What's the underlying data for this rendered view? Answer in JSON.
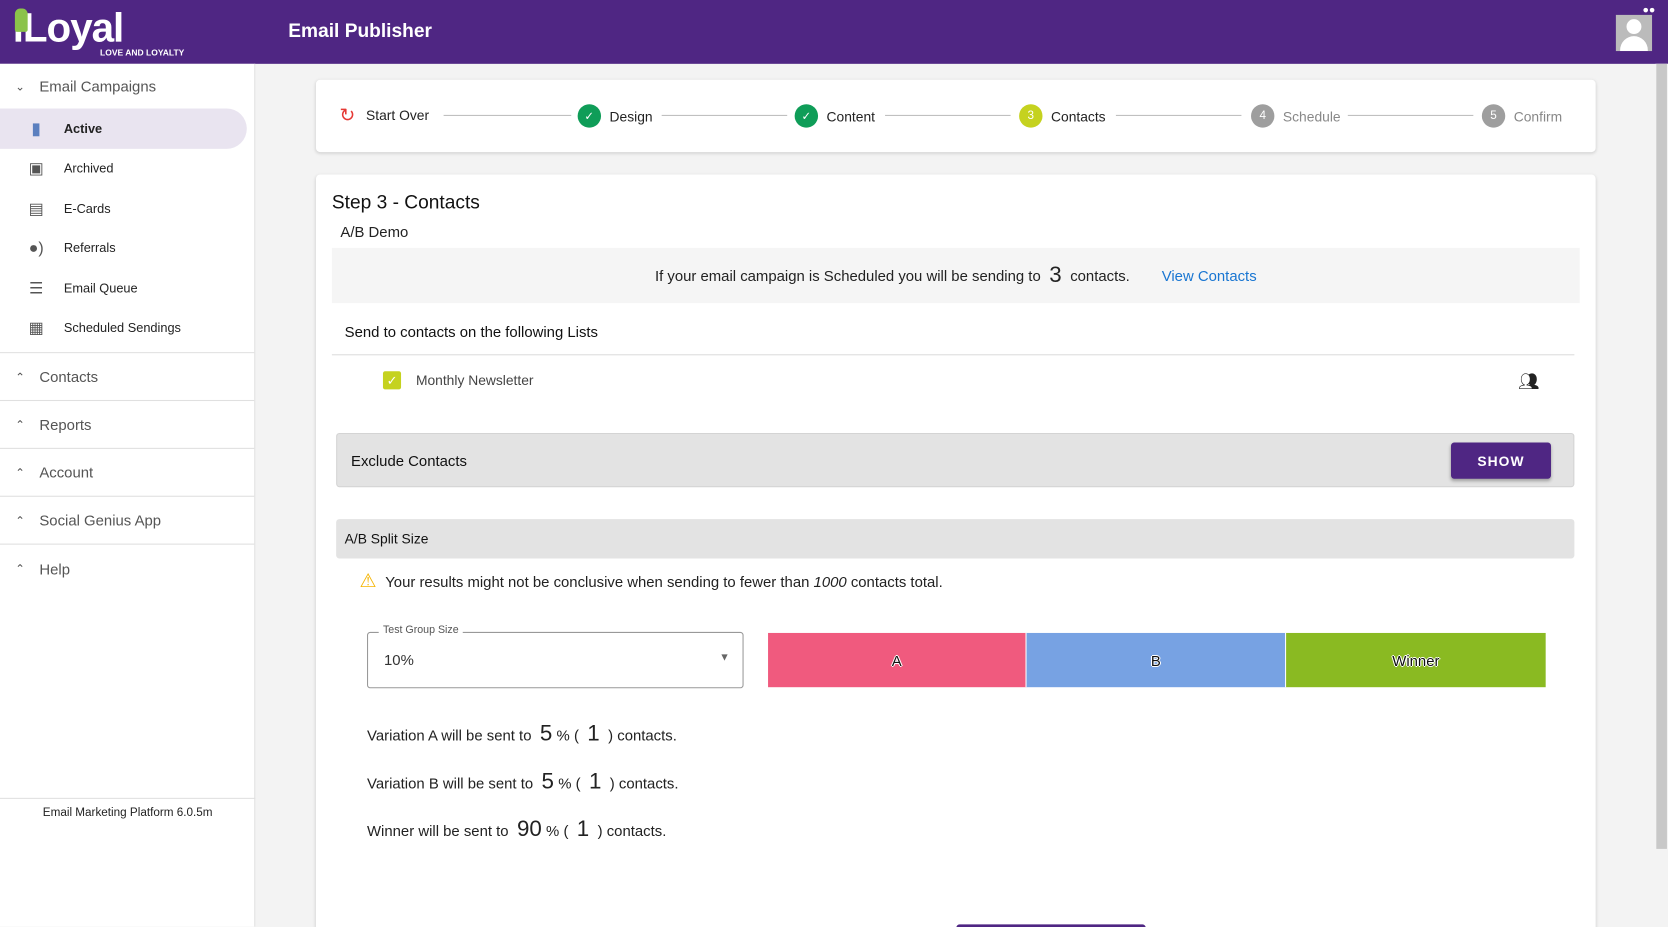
{
  "header": {
    "logo": "iLoyal",
    "logo_tagline": "LOVE AND LOYALTY",
    "title": "Email Publisher"
  },
  "sidebar": {
    "email_campaigns": "Email Campaigns",
    "items": [
      {
        "label": "Active",
        "icon": "document-icon"
      },
      {
        "label": "Archived",
        "icon": "archive-icon"
      },
      {
        "label": "E-Cards",
        "icon": "gift-card-icon"
      },
      {
        "label": "Referrals",
        "icon": "referral-icon"
      },
      {
        "label": "Email Queue",
        "icon": "queue-icon"
      },
      {
        "label": "Scheduled Sendings",
        "icon": "calendar-icon"
      }
    ],
    "sections": [
      "Contacts",
      "Reports",
      "Account",
      "Social Genius App",
      "Help"
    ],
    "version": "Email Marketing Platform 6.0.5m"
  },
  "stepper": {
    "start_over": "Start Over",
    "steps": [
      {
        "label": "Design",
        "state": "done"
      },
      {
        "label": "Content",
        "state": "done"
      },
      {
        "num": "3",
        "label": "Contacts",
        "state": "current"
      },
      {
        "num": "4",
        "label": "Schedule",
        "state": "todo"
      },
      {
        "num": "5",
        "label": "Confirm",
        "state": "todo"
      }
    ]
  },
  "main": {
    "title": "Step 3 - Contacts",
    "campaign": "A/B Demo",
    "info_pre": "If your email campaign is Scheduled you will be sending to",
    "info_count": "3",
    "info_post": "contacts.",
    "view_contacts": "View Contacts",
    "lists_heading": "Send to contacts on the following Lists",
    "lists": [
      {
        "name": "Monthly Newsletter",
        "checked": true
      }
    ],
    "exclude_label": "Exclude Contacts",
    "show_button": "SHOW",
    "split_heading": "A/B Split Size",
    "warning_pre": "Your results might not be conclusive when sending to fewer than",
    "warning_num": "1000",
    "warning_post": "contacts total.",
    "test_group": {
      "label": "Test Group Size",
      "value": "10%"
    },
    "bars": [
      {
        "label": "A",
        "color": "#f05a7e"
      },
      {
        "label": "B",
        "color": "#77a2e3"
      },
      {
        "label": "Winner",
        "color": "#8aba22"
      }
    ],
    "variations": [
      {
        "pre": "Variation A will be sent to",
        "pct": "5",
        "count": "1"
      },
      {
        "pre": "Variation B will be sent to",
        "pct": "5",
        "count": "1"
      },
      {
        "pre": "Winner will be sent to",
        "pct": "90",
        "count": "1"
      }
    ],
    "pct_sym": "%",
    "open": "(",
    "close": ")",
    "contacts": "contacts."
  }
}
